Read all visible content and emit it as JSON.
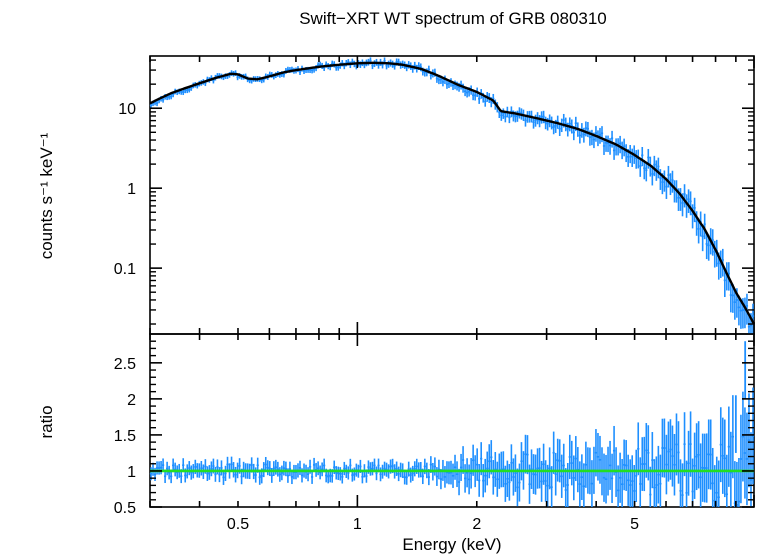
{
  "chart_data": [
    {
      "type": "line",
      "title": "Swift−XRT WT spectrum of GRB 080310",
      "xlabel": "",
      "ylabel": "counts s⁻¹ keV⁻¹",
      "xscale": "log",
      "yscale": "log",
      "xlim": [
        0.3,
        10.0
      ],
      "ylim": [
        0.015,
        45
      ],
      "y_ticks": [
        {
          "value": 10,
          "label": "10"
        },
        {
          "value": 1,
          "label": "1"
        },
        {
          "value": 0.1,
          "label": "0.1"
        }
      ],
      "series": [
        {
          "color": "#1e8fff",
          "style": "data-with-error-bars",
          "points": [
            [
              0.3,
              10.5
            ],
            [
              0.32,
              13
            ],
            [
              0.34,
              15
            ],
            [
              0.37,
              17.5
            ],
            [
              0.4,
              20
            ],
            [
              0.44,
              24
            ],
            [
              0.48,
              27
            ],
            [
              0.5,
              26
            ],
            [
              0.53,
              23.5
            ],
            [
              0.56,
              22.5
            ],
            [
              0.6,
              25
            ],
            [
              0.65,
              28
            ],
            [
              0.7,
              30
            ],
            [
              0.8,
              33
            ],
            [
              0.9,
              35
            ],
            [
              1.0,
              36.5
            ],
            [
              1.1,
              37
            ],
            [
              1.2,
              36.5
            ],
            [
              1.3,
              35
            ],
            [
              1.45,
              31
            ],
            [
              1.6,
              25
            ],
            [
              1.8,
              18.5
            ],
            [
              2.0,
              15
            ],
            [
              2.2,
              12.5
            ],
            [
              2.3,
              9
            ],
            [
              2.5,
              8.5
            ],
            [
              2.8,
              7.5
            ],
            [
              3.2,
              6.5
            ],
            [
              3.6,
              5.5
            ],
            [
              4.0,
              4.5
            ],
            [
              4.5,
              3.5
            ],
            [
              5.0,
              2.6
            ],
            [
              5.5,
              1.9
            ],
            [
              6.0,
              1.3
            ],
            [
              6.5,
              0.85
            ],
            [
              7.0,
              0.5
            ],
            [
              7.5,
              0.3
            ],
            [
              8.0,
              0.15
            ],
            [
              8.5,
              0.08
            ],
            [
              9.0,
              0.045
            ],
            [
              9.5,
              0.03
            ],
            [
              10.0,
              0.018
            ]
          ]
        },
        {
          "color": "#000000",
          "style": "model-line",
          "points": [
            [
              0.3,
              11.5
            ],
            [
              0.32,
              13.5
            ],
            [
              0.34,
              15.5
            ],
            [
              0.37,
              18
            ],
            [
              0.4,
              20.5
            ],
            [
              0.44,
              24
            ],
            [
              0.48,
              27
            ],
            [
              0.5,
              26.5
            ],
            [
              0.53,
              23.5
            ],
            [
              0.56,
              23
            ],
            [
              0.6,
              25
            ],
            [
              0.65,
              28
            ],
            [
              0.7,
              30
            ],
            [
              0.8,
              33
            ],
            [
              0.9,
              35
            ],
            [
              1.0,
              36.5
            ],
            [
              1.1,
              37
            ],
            [
              1.2,
              36.5
            ],
            [
              1.3,
              35
            ],
            [
              1.45,
              31
            ],
            [
              1.6,
              25.5
            ],
            [
              1.8,
              19.5
            ],
            [
              2.0,
              16
            ],
            [
              2.2,
              12.5
            ],
            [
              2.3,
              9.2
            ],
            [
              2.5,
              8.6
            ],
            [
              2.8,
              7.6
            ],
            [
              3.2,
              6.5
            ],
            [
              3.6,
              5.5
            ],
            [
              4.0,
              4.5
            ],
            [
              4.5,
              3.5
            ],
            [
              5.0,
              2.6
            ],
            [
              5.5,
              1.9
            ],
            [
              6.0,
              1.3
            ],
            [
              6.5,
              0.85
            ],
            [
              7.0,
              0.52
            ],
            [
              7.5,
              0.31
            ],
            [
              8.0,
              0.17
            ],
            [
              8.5,
              0.09
            ],
            [
              9.0,
              0.05
            ],
            [
              9.5,
              0.032
            ],
            [
              10.0,
              0.02
            ]
          ]
        }
      ]
    },
    {
      "type": "line",
      "title": "",
      "xlabel": "Energy (keV)",
      "ylabel": "ratio",
      "xscale": "log",
      "yscale": "linear",
      "xlim": [
        0.3,
        10.0
      ],
      "ylim": [
        0.5,
        2.9
      ],
      "x_ticks": [
        {
          "value": 0.5,
          "label": "0.5"
        },
        {
          "value": 1,
          "label": "1"
        },
        {
          "value": 2,
          "label": "2"
        },
        {
          "value": 5,
          "label": "5"
        }
      ],
      "y_ticks": [
        {
          "value": 0.5,
          "label": "0.5"
        },
        {
          "value": 1,
          "label": "1"
        },
        {
          "value": 1.5,
          "label": "1.5"
        },
        {
          "value": 2,
          "label": "2"
        },
        {
          "value": 2.5,
          "label": "2.5"
        }
      ],
      "reference_line": {
        "value": 1.0,
        "color": "#22dd22"
      },
      "series": [
        {
          "color": "#1e8fff",
          "style": "data-with-error-bars",
          "scatter_by_energy": [
            [
              0.3,
              0.1
            ],
            [
              0.5,
              0.12
            ],
            [
              1.0,
              0.1
            ],
            [
              1.5,
              0.12
            ],
            [
              2.0,
              0.25
            ],
            [
              3.0,
              0.32
            ],
            [
              5.0,
              0.4
            ],
            [
              8.0,
              0.55
            ],
            [
              10.0,
              0.75
            ]
          ],
          "outliers": [
            [
              9.5,
              2.8
            ],
            [
              9.0,
              2.05
            ]
          ]
        }
      ]
    }
  ]
}
